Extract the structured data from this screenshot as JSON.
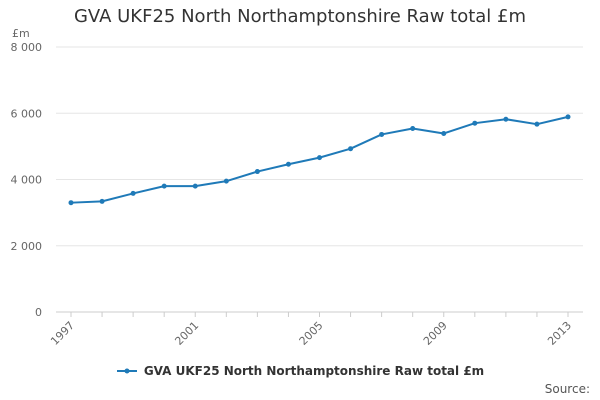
{
  "chart_data": {
    "type": "line",
    "title": "GVA UKF25 North Northamptonshire Raw total £m",
    "ylabel": "£m",
    "xlabel": "",
    "x": [
      1997,
      1998,
      1999,
      2000,
      2001,
      2002,
      2003,
      2004,
      2005,
      2006,
      2007,
      2008,
      2009,
      2010,
      2011,
      2012,
      2013
    ],
    "xticks": [
      1997,
      2001,
      2005,
      2009,
      2013
    ],
    "ylim": [
      0,
      8000
    ],
    "yticks": [
      0,
      2000,
      4000,
      6000,
      8000
    ],
    "ytick_labels": [
      "0",
      "2 000",
      "4 000",
      "6 000",
      "8 000"
    ],
    "grid": true,
    "legend_position": "bottom",
    "series": [
      {
        "name": "GVA UKF25 North Northamptonshire Raw total £m",
        "color": "#1f7ab8",
        "values": [
          3300,
          3340,
          3580,
          3800,
          3800,
          3950,
          4240,
          4460,
          4660,
          4930,
          5360,
          5540,
          5390,
          5700,
          5820,
          5670,
          5890
        ]
      }
    ],
    "source_label": "Source:"
  }
}
